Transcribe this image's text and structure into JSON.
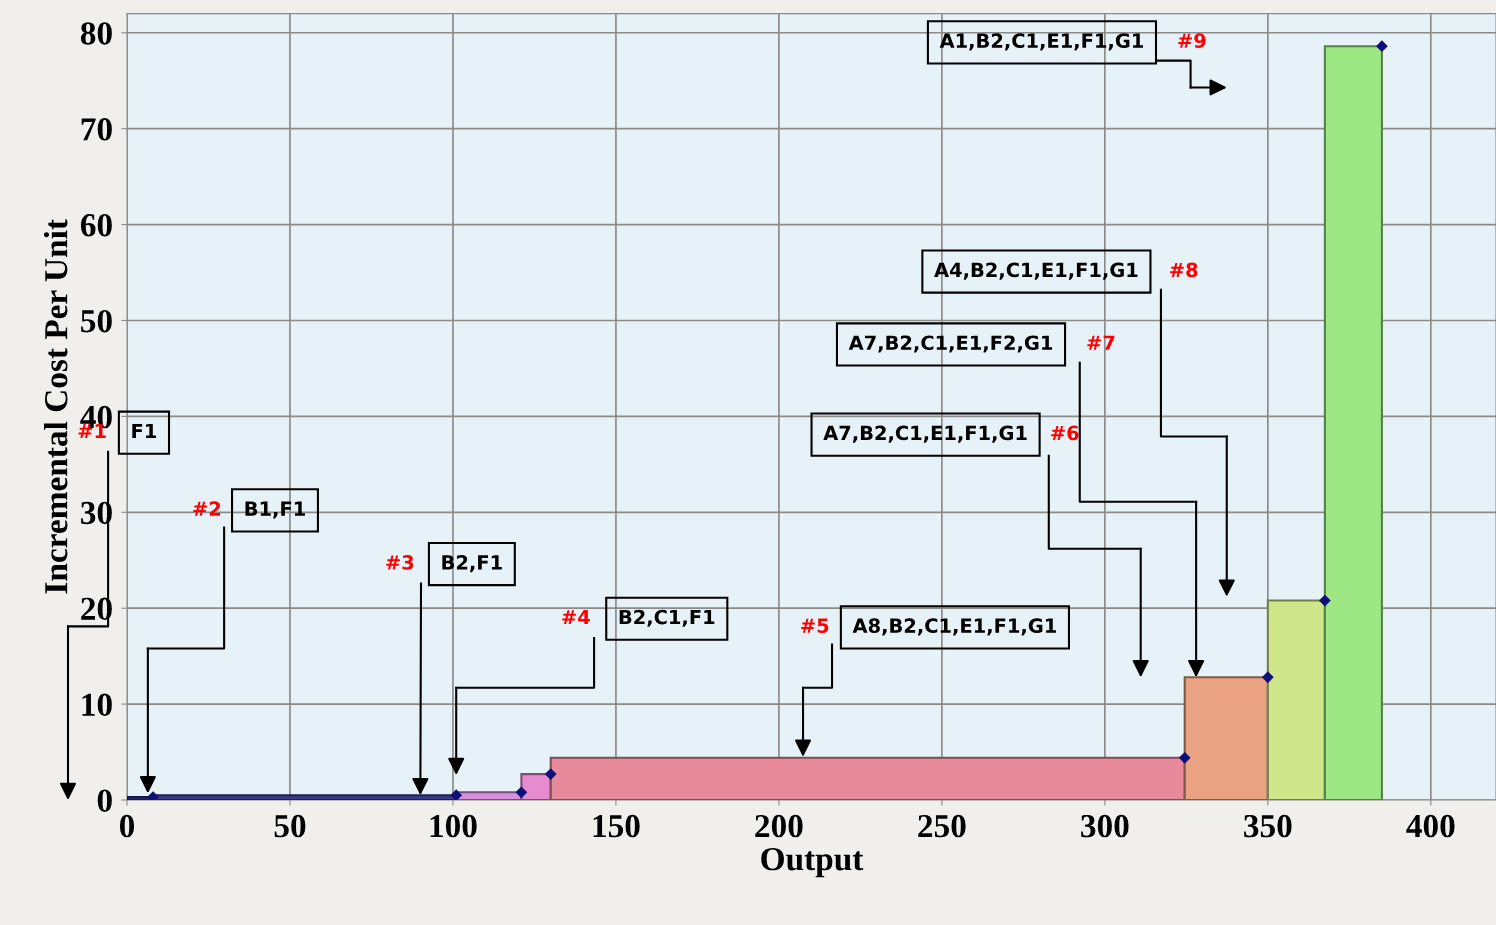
{
  "chart_data": {
    "type": "histogram",
    "xlabel": "Output",
    "ylabel": "Incremental Cost Per Unit",
    "bins": [
      0,
      8,
      101,
      121,
      130,
      324.5,
      350,
      367.5,
      385
    ],
    "values": [
      0.3,
      0.5,
      0.8,
      2.7,
      4.4,
      12.8,
      20.8,
      78.6
    ],
    "colors": [
      "#2b2b80",
      "#3a3a8c",
      "#d890dc",
      "#e68bd0",
      "#e98a9c",
      "#e9a383",
      "#d0e68a",
      "#9de884"
    ],
    "series": [
      {
        "type": "scatter",
        "color": "#10107a",
        "marker": "diamond",
        "x": [
          8,
          101,
          121,
          130,
          324.5,
          350,
          367.5,
          385
        ],
        "values": [
          0.3,
          0.5,
          0.8,
          2.7,
          4.4,
          12.8,
          20.8,
          78.6
        ]
      }
    ],
    "xlim": [
      0,
      420
    ],
    "ylim": [
      0,
      82
    ],
    "xticks": [
      0,
      50,
      100,
      150,
      200,
      250,
      300,
      350,
      400
    ],
    "yticks": [
      0,
      10,
      20,
      30,
      40,
      50,
      60,
      70,
      80
    ],
    "grid": true,
    "annotations": [
      "F1",
      "#1",
      "B1,F1",
      "#2",
      {
        "text": "B2,F1",
        "x": 90,
        "y": 0.5
      },
      "#3",
      "B2,C1,F1",
      "#4",
      "A8,B2,C1,E1,F1,G1",
      "#5",
      "A7,B2,C1,E1,F1,G1",
      "#6",
      "A7,B2,C1,E1,F2,G1",
      "#7",
      "A4,B2,C1,E1,F1,G1",
      "#8",
      "A1,B2,C1,E1,F1,G1",
      "#9"
    ]
  }
}
